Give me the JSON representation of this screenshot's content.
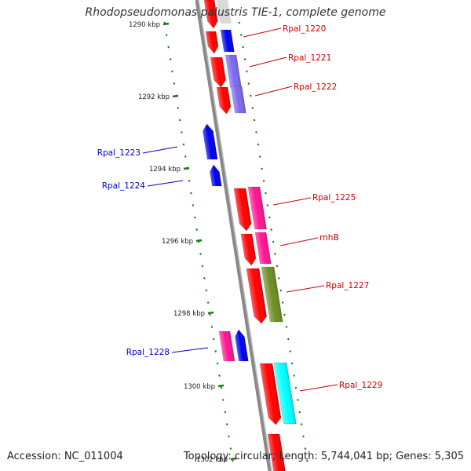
{
  "header": {
    "title": "Rhodopseudomonas palustris TIE-1, complete genome"
  },
  "footer": {
    "accession": "Accession: NC_011004",
    "topology": "Topology: circular; Length: 5,744,041 bp; Genes: 5,305"
  },
  "colors": {
    "forward_label": "#cc0000",
    "reverse_label": "#0000cc",
    "tick": "#1a7a1a",
    "backbone": "#888888"
  },
  "scale_ticks": [
    {
      "label": "1290 kbp",
      "kbp": 1290
    },
    {
      "label": "1292 kbp",
      "kbp": 1292
    },
    {
      "label": "1294 kbp",
      "kbp": 1294
    },
    {
      "label": "1296 kbp",
      "kbp": 1296
    },
    {
      "label": "1298 kbp",
      "kbp": 1298
    },
    {
      "label": "1300 kbp",
      "kbp": 1300
    },
    {
      "label": "1302 kbp",
      "kbp": 1302
    }
  ],
  "genes": [
    {
      "label": "Rpal_1220",
      "strand": "forward",
      "cds_color": "#ff0000",
      "feature_color": "#0000ee"
    },
    {
      "label": "Rpal_1221",
      "strand": "forward",
      "cds_color": "#ff0000",
      "feature_color": "#7b68ee"
    },
    {
      "label": "Rpal_1222",
      "strand": "forward",
      "cds_color": "#ff0000",
      "feature_color": "#7b68ee"
    },
    {
      "label": "Rpal_1223",
      "strand": "reverse",
      "cds_color": "#0000ee",
      "feature_color": ""
    },
    {
      "label": "Rpal_1224",
      "strand": "reverse",
      "cds_color": "#0000ee",
      "feature_color": ""
    },
    {
      "label": "Rpal_1225",
      "strand": "forward",
      "cds_color": "#ff0000",
      "feature_color": "#ff1493"
    },
    {
      "label": "rnhB",
      "strand": "forward",
      "cds_color": "#ff0000",
      "feature_color": "#ff1493"
    },
    {
      "label": "Rpal_1227",
      "strand": "forward",
      "cds_color": "#ff0000",
      "feature_color": "#6b8e23"
    },
    {
      "label": "Rpal_1228",
      "strand": "reverse",
      "cds_color": "#0000ee",
      "feature_color": "#ff1493"
    },
    {
      "label": "Rpal_1229",
      "strand": "forward",
      "cds_color": "#ff0000",
      "feature_color": "#00ffff"
    }
  ]
}
